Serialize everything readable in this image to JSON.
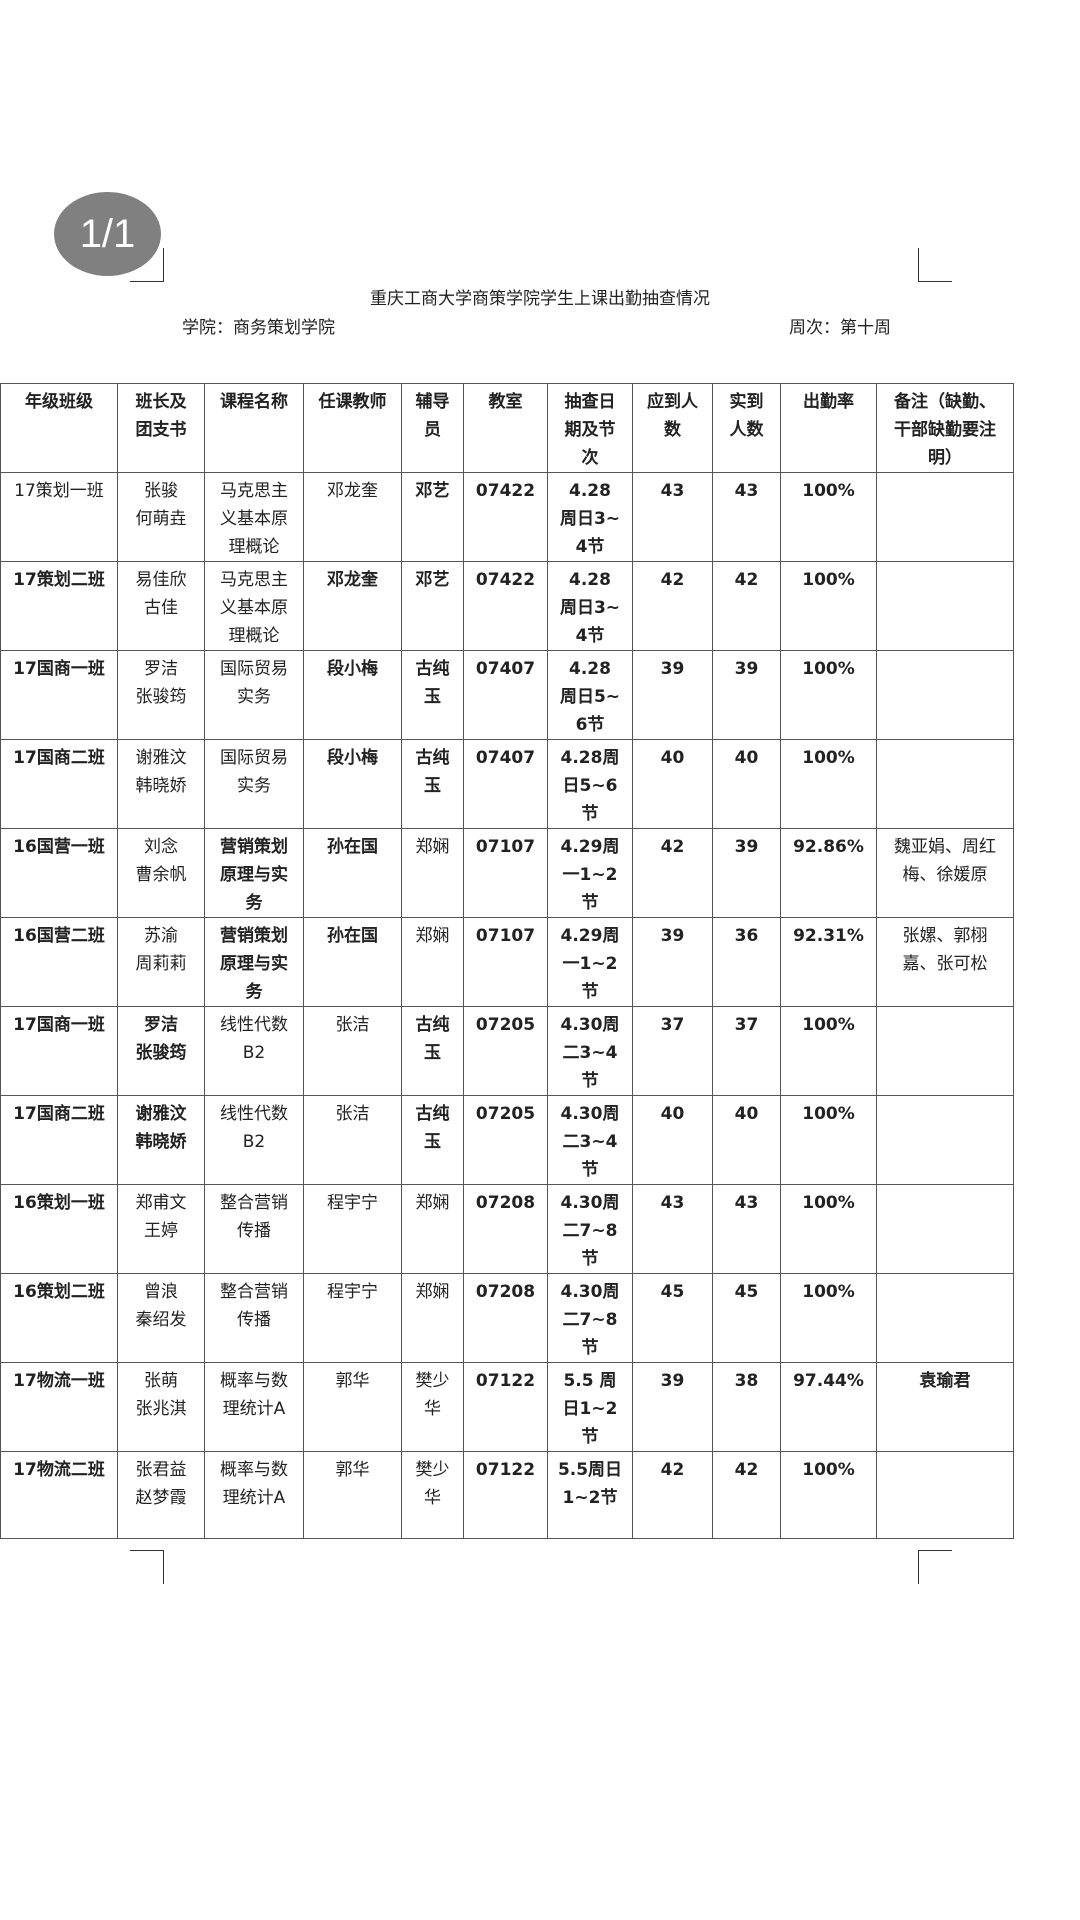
{
  "viewer": {
    "page_indicator": "1/1"
  },
  "document": {
    "title": "重庆工商大学商策学院学生上课出勤抽查情况",
    "college": "学院：商务策划学院",
    "week": "周次：第十周"
  },
  "table": {
    "headers": [
      "年级班级",
      "班长及\n团支书",
      "课程名称",
      "任课教师",
      "辅导\n员",
      "教室",
      "抽查日\n期及节\n次",
      "应到人\n数",
      "实到\n人数",
      "出勤率",
      "备注（缺勤、\n干部缺勤要注\n明）"
    ],
    "rows": [
      [
        "17策划一班",
        "张骏\n何萌垚",
        "马克思主\n义基本原\n理概论",
        "邓龙奎",
        "邓艺",
        "07422",
        "4.28\n周日3~\n4节",
        "43",
        "43",
        "100%",
        ""
      ],
      [
        "17策划二班",
        "易佳欣\n古佳",
        "马克思主\n义基本原\n理概论",
        "邓龙奎",
        "邓艺",
        "07422",
        "4.28\n周日3~\n4节",
        "42",
        "42",
        "100%",
        ""
      ],
      [
        "17国商一班",
        "罗洁\n张骏筠",
        "国际贸易\n实务",
        "段小梅",
        "古纯\n玉",
        "07407",
        "4.28\n周日5~\n6节",
        "39",
        "39",
        "100%",
        ""
      ],
      [
        "17国商二班",
        "谢雅汶\n韩晓娇",
        "国际贸易\n实务",
        "段小梅",
        "古纯\n玉",
        "07407",
        "4.28周\n日5~6\n节",
        "40",
        "40",
        "100%",
        ""
      ],
      [
        "16国营一班",
        "刘念\n曹余帆",
        "营销策划\n原理与实\n务",
        "孙在国",
        "郑娴",
        "07107",
        "4.29周\n一1~2\n节",
        "42",
        "39",
        "92.86%",
        "魏亚娟、周红\n梅、徐媛原"
      ],
      [
        "16国营二班",
        "苏渝\n周莉莉",
        "营销策划\n原理与实\n务",
        "孙在国",
        "郑娴",
        "07107",
        "4.29周\n一1~2\n节",
        "39",
        "36",
        "92.31%",
        "张嫘、郭栩\n嘉、张可松"
      ],
      [
        "17国商一班",
        "罗洁\n张骏筠",
        "线性代数\nB2",
        "张洁",
        "古纯\n玉",
        "07205",
        "4.30周\n二3~4\n节",
        "37",
        "37",
        "100%",
        ""
      ],
      [
        "17国商二班",
        "谢雅汶\n韩晓娇",
        "线性代数\nB2",
        "张洁",
        "古纯\n玉",
        "07205",
        "4.30周\n二3~4\n节",
        "40",
        "40",
        "100%",
        ""
      ],
      [
        "16策划一班",
        "郑甫文\n王婷",
        "整合营销\n传播",
        "程宇宁",
        "郑娴",
        "07208",
        "4.30周\n二7~8\n节",
        "43",
        "43",
        "100%",
        ""
      ],
      [
        "16策划二班",
        "曾浪\n秦绍发",
        "整合营销\n传播",
        "程宇宁",
        "郑娴",
        "07208",
        "4.30周\n二7~8\n节",
        "45",
        "45",
        "100%",
        ""
      ],
      [
        "17物流一班",
        "张萌\n张兆淇",
        "概率与数\n理统计A",
        "郭华",
        "樊少\n华",
        "07122",
        "5.5 周\n日1~2\n节",
        "39",
        "38",
        "97.44%",
        "袁瑜君"
      ],
      [
        "17物流二班",
        "张君益\n赵梦霞",
        "概率与数\n理统计A",
        "郭华",
        "樊少\n华",
        "07122",
        "5.5周日\n1~2节",
        "42",
        "42",
        "100%",
        ""
      ]
    ]
  }
}
